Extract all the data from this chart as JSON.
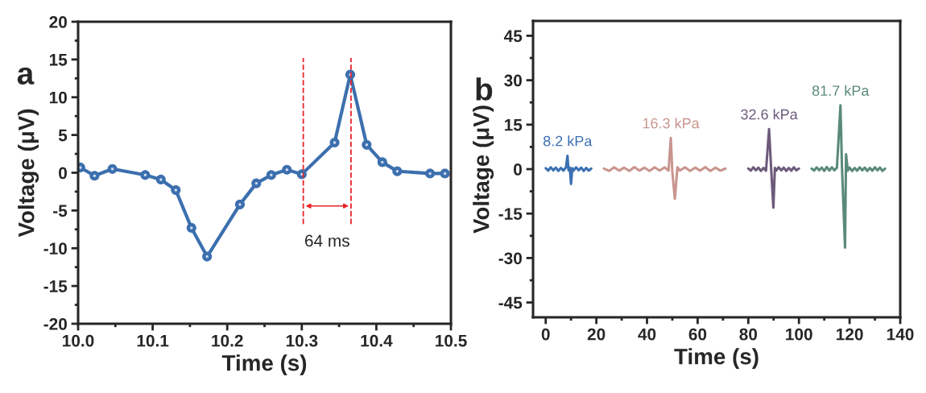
{
  "chart_data": [
    {
      "type": "line",
      "xlabel": "Time (s)",
      "ylabel": "Voltage (μV)",
      "xlim": [
        10.0,
        10.5
      ],
      "ylim": [
        -20,
        20
      ],
      "xticks": [
        {
          "value": 10.0,
          "label": "10.0"
        },
        10.1,
        10.2,
        10.3,
        10.4,
        10.5
      ],
      "yticks": [
        -20,
        -15,
        -10,
        -5,
        0,
        5,
        10,
        15,
        20
      ],
      "marker": "circle",
      "grid": false,
      "legend": false,
      "series": [
        {
          "color": "#3c6fae",
          "x": [
            10.003,
            10.022,
            10.046,
            10.09,
            10.111,
            10.131,
            10.152,
            10.173,
            10.217,
            10.239,
            10.259,
            10.28,
            10.3,
            10.344,
            10.365,
            10.387,
            10.408,
            10.428,
            10.472,
            10.492
          ],
          "values": [
            0.7,
            -0.4,
            0.5,
            -0.3,
            -0.9,
            -2.3,
            -7.3,
            -11.1,
            -4.2,
            -1.4,
            -0.3,
            0.4,
            -0.2,
            4.0,
            13.0,
            3.7,
            1.4,
            0.2,
            -0.1,
            -0.1
          ]
        }
      ],
      "ref_lines": [
        {
          "axis": "x",
          "value": 10.302,
          "color": "#e8262b",
          "line_style": "dashed"
        },
        {
          "axis": "x",
          "value": 10.366,
          "color": "#e8262b",
          "line_style": "dashed"
        }
      ],
      "annotations": [
        "a",
        "64 ms"
      ]
    },
    {
      "type": "line",
      "xlabel": "Time (s)",
      "ylabel": "Voltage (μV)",
      "xlim": [
        -5,
        140
      ],
      "ylim": [
        -50,
        50
      ],
      "xticks": [
        0,
        20,
        40,
        60,
        80,
        100,
        120,
        140
      ],
      "yticks": [
        -45,
        -30,
        -15,
        0,
        15,
        30,
        45
      ],
      "marker": "none",
      "grid": false,
      "legend": false,
      "series": [
        {
          "name": "8.2 kPa",
          "color": "#3b70b2",
          "x": [
            0,
            1,
            2,
            3,
            4,
            5,
            6,
            7,
            8,
            8.6,
            9,
            9.5,
            10,
            10.5,
            11,
            12,
            13,
            14,
            15,
            16,
            17,
            18
          ],
          "values": [
            0.3,
            -0.5,
            0.6,
            -0.4,
            0.5,
            -0.6,
            0.4,
            -0.5,
            0.6,
            4.5,
            -0.4,
            0.5,
            -5,
            0.3,
            -0.5,
            0.6,
            -0.4,
            0.5,
            -0.6,
            0.4,
            -0.5,
            0.2
          ]
        },
        {
          "name": "16.3 kPa",
          "color": "#c9958e",
          "x": [
            23,
            25,
            27,
            29,
            31,
            33,
            35,
            37,
            39,
            41,
            43,
            45,
            47,
            48.5,
            49.4,
            50,
            51,
            52,
            53,
            55,
            57,
            59,
            61,
            63,
            65,
            67,
            69,
            71
          ],
          "values": [
            0.2,
            -0.6,
            0.6,
            -0.5,
            0.5,
            -0.6,
            0.7,
            -0.5,
            0.5,
            -0.6,
            0.6,
            -0.5,
            0.6,
            -0.5,
            10.5,
            -1,
            -10,
            0.6,
            -0.5,
            0.6,
            -0.6,
            0.5,
            -0.5,
            0.7,
            -0.6,
            0.5,
            -0.5,
            0.2
          ]
        },
        {
          "name": "32.6 kPa",
          "color": "#6c5a7b",
          "x": [
            80,
            81,
            82,
            83,
            84,
            85,
            86,
            87,
            88.2,
            89,
            89.9,
            90.5,
            91,
            92,
            93,
            94,
            95,
            96,
            97,
            98,
            99,
            100
          ],
          "values": [
            0.2,
            -0.5,
            0.6,
            -0.4,
            0.5,
            -0.6,
            0.4,
            -0.5,
            13.5,
            0.5,
            -13,
            0.4,
            -0.5,
            0.6,
            -0.4,
            0.5,
            -0.6,
            0.4,
            -0.5,
            0.6,
            -0.4,
            0.2
          ]
        },
        {
          "name": "81.7 kPa",
          "color": "#5a8a7b",
          "x": [
            105,
            106,
            107,
            108,
            109,
            110,
            111,
            112,
            113,
            114,
            115,
            116.4,
            117,
            118.2,
            118.6,
            119.3,
            120,
            121,
            122,
            123,
            124,
            125,
            126,
            127,
            128,
            129,
            130,
            131,
            132,
            133,
            134
          ],
          "values": [
            0.2,
            -0.5,
            0.6,
            -0.4,
            0.5,
            -0.6,
            0.7,
            -0.5,
            0.6,
            -0.4,
            0.5,
            21.5,
            0.5,
            -26.5,
            5,
            -0.5,
            0.5,
            -0.6,
            0.4,
            -0.5,
            0.6,
            -0.4,
            0.5,
            -0.6,
            0.4,
            -0.5,
            0.6,
            -0.4,
            0.5,
            -0.6,
            0.2
          ]
        }
      ],
      "annotations": [
        "b"
      ]
    }
  ]
}
